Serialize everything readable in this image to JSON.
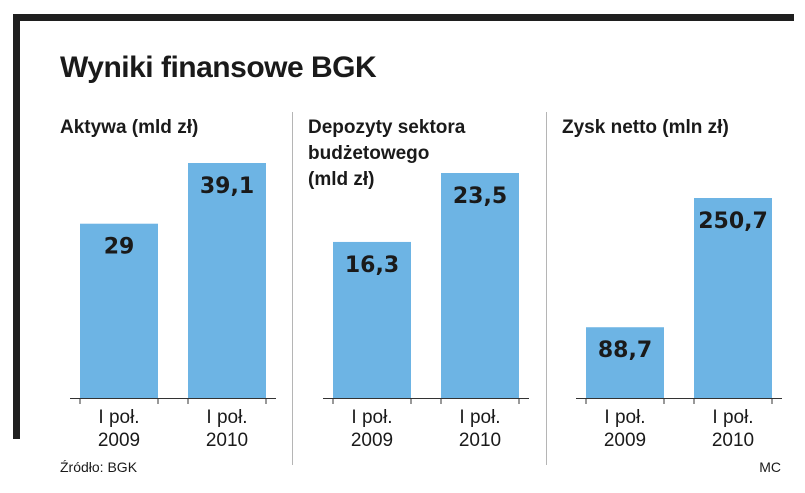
{
  "title": "Wyniki finansowe BGK",
  "source": "Źródło: BGK",
  "credit": "MC",
  "colors": {
    "bar": "#6db4e4",
    "frame": "#1f1f1f"
  },
  "chart_data": [
    {
      "type": "bar",
      "title": [
        "Aktywa (mld zł)"
      ],
      "categories": [
        [
          "I poł.",
          "2009"
        ],
        [
          "I poł.",
          "2010"
        ]
      ],
      "values": [
        29,
        39.1
      ],
      "value_labels": [
        "29",
        "39,1"
      ],
      "ylim": [
        0,
        39.1
      ]
    },
    {
      "type": "bar",
      "title": [
        "Depozyty sektora",
        "budżetowego",
        "(mld zł)"
      ],
      "categories": [
        [
          "I poł.",
          "2009"
        ],
        [
          "I poł.",
          "2010"
        ]
      ],
      "values": [
        16.3,
        23.5
      ],
      "value_labels": [
        "16,3",
        "23,5"
      ],
      "ylim": [
        0,
        23.5
      ]
    },
    {
      "type": "bar",
      "title": [
        "Zysk netto (mln zł)"
      ],
      "categories": [
        [
          "I poł.",
          "2009"
        ],
        [
          "I poł.",
          "2010"
        ]
      ],
      "values": [
        88.7,
        250.7
      ],
      "value_labels": [
        "88,7",
        "250,7"
      ],
      "ylim": [
        0,
        250.7
      ]
    }
  ]
}
